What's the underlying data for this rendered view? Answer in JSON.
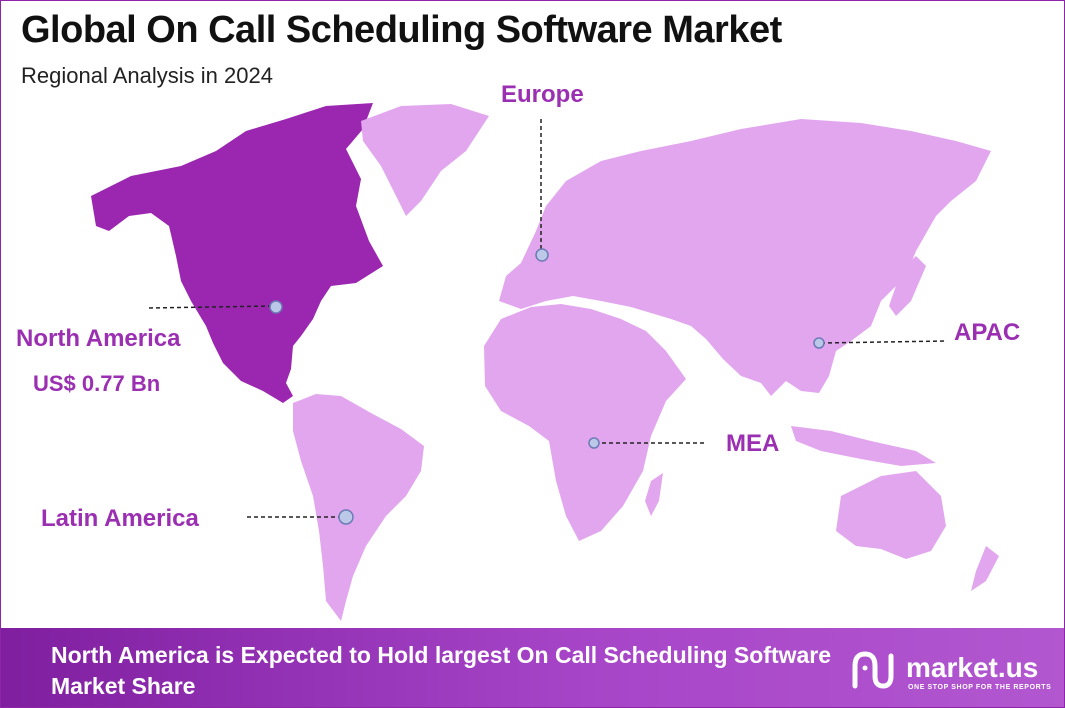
{
  "header": {
    "title": "Global On Call Scheduling Software Market",
    "subtitle": "Regional Analysis in 2024"
  },
  "regions": [
    {
      "name": "North America",
      "value": "US$ 0.77 Bn",
      "highlighted": true
    },
    {
      "name": "Europe"
    },
    {
      "name": "APAC"
    },
    {
      "name": "MEA"
    },
    {
      "name": "Latin America"
    }
  ],
  "colors": {
    "highlight": "#9b27b0",
    "land": "#e2a6ee",
    "label": "#9b2fb2",
    "footer": "#8e2bb0"
  },
  "footer": {
    "text": "North America is Expected to Hold largest On Call Scheduling Software Market Share",
    "brand": "market.us",
    "tagline": "ONE STOP SHOP FOR THE REPORTS",
    "logo_icon": "market-us-logo-icon"
  }
}
